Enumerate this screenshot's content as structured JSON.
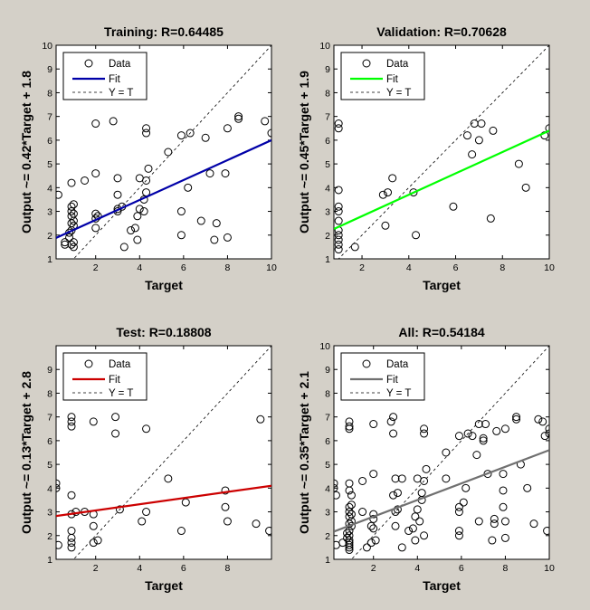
{
  "figure": {
    "background": "#d4d0c8",
    "plot_background": "#ffffff"
  },
  "chart_data": [
    {
      "type": "scatter",
      "title": "Training: R=0.64485",
      "xlabel": "Target",
      "ylabel": "Output ~= 0.42*Target + 1.8",
      "xlim": [
        0.2,
        10
      ],
      "ylim": [
        1,
        10
      ],
      "xticks": [
        2,
        4,
        6,
        8,
        10
      ],
      "yticks": [
        1,
        2,
        3,
        4,
        5,
        6,
        7,
        8,
        9,
        10
      ],
      "fit": {
        "slope": 0.42,
        "intercept": 1.8,
        "color": "#0000a8"
      },
      "legend": [
        "Data",
        "Fit",
        "Y = T"
      ],
      "legend_position": "top-left",
      "points": [
        [
          0.3,
          3.7
        ],
        [
          0.6,
          1.7
        ],
        [
          0.6,
          1.6
        ],
        [
          0.8,
          1.9
        ],
        [
          0.8,
          2.1
        ],
        [
          0.9,
          1.6
        ],
        [
          0.9,
          2.2
        ],
        [
          0.9,
          2.5
        ],
        [
          0.9,
          2.8
        ],
        [
          0.9,
          3.0
        ],
        [
          0.9,
          3.2
        ],
        [
          0.9,
          4.2
        ],
        [
          1.0,
          1.5
        ],
        [
          1.0,
          1.7
        ],
        [
          1.0,
          2.4
        ],
        [
          1.0,
          2.6
        ],
        [
          1.0,
          2.9
        ],
        [
          1.0,
          3.3
        ],
        [
          1.5,
          4.3
        ],
        [
          2.0,
          2.3
        ],
        [
          2.0,
          2.7
        ],
        [
          2.0,
          2.9
        ],
        [
          2.0,
          4.6
        ],
        [
          2.0,
          6.7
        ],
        [
          2.1,
          2.8
        ],
        [
          2.8,
          6.8
        ],
        [
          3.0,
          3.0
        ],
        [
          3.0,
          3.1
        ],
        [
          3.0,
          3.7
        ],
        [
          3.0,
          4.4
        ],
        [
          3.2,
          3.2
        ],
        [
          3.3,
          1.5
        ],
        [
          3.6,
          2.2
        ],
        [
          3.8,
          2.3
        ],
        [
          3.9,
          1.8
        ],
        [
          3.9,
          2.8
        ],
        [
          4.0,
          3.1
        ],
        [
          4.0,
          4.4
        ],
        [
          4.2,
          3.0
        ],
        [
          4.2,
          3.5
        ],
        [
          4.3,
          3.8
        ],
        [
          4.3,
          4.3
        ],
        [
          4.3,
          6.3
        ],
        [
          4.3,
          6.5
        ],
        [
          4.4,
          4.8
        ],
        [
          5.3,
          5.5
        ],
        [
          5.9,
          2.0
        ],
        [
          5.9,
          3.0
        ],
        [
          5.9,
          6.2
        ],
        [
          6.2,
          4.0
        ],
        [
          6.3,
          6.3
        ],
        [
          6.8,
          2.6
        ],
        [
          7.0,
          6.1
        ],
        [
          7.2,
          4.6
        ],
        [
          7.4,
          1.8
        ],
        [
          7.5,
          2.5
        ],
        [
          7.9,
          4.6
        ],
        [
          8.0,
          1.9
        ],
        [
          8.0,
          6.5
        ],
        [
          8.5,
          6.9
        ],
        [
          8.5,
          7.0
        ],
        [
          9.7,
          6.8
        ],
        [
          10.0,
          6.3
        ]
      ]
    },
    {
      "type": "scatter",
      "title": "Validation: R=0.70628",
      "xlabel": "Target",
      "ylabel": "Output ~= 0.45*Target + 1.9",
      "xlim": [
        0.8,
        10
      ],
      "ylim": [
        1,
        10
      ],
      "xticks": [
        2,
        4,
        6,
        8,
        10
      ],
      "yticks": [
        1,
        2,
        3,
        4,
        5,
        6,
        7,
        8,
        9,
        10
      ],
      "fit": {
        "slope": 0.45,
        "intercept": 1.9,
        "color": "#00ff00"
      },
      "legend": [
        "Data",
        "Fit",
        "Y = T"
      ],
      "legend_position": "top-left",
      "points": [
        [
          1.0,
          1.4
        ],
        [
          1.0,
          1.6
        ],
        [
          1.0,
          1.8
        ],
        [
          1.0,
          2.0
        ],
        [
          1.0,
          2.2
        ],
        [
          1.0,
          2.6
        ],
        [
          1.0,
          3.0
        ],
        [
          1.0,
          3.2
        ],
        [
          1.0,
          3.9
        ],
        [
          1.0,
          6.5
        ],
        [
          1.0,
          6.7
        ],
        [
          1.7,
          1.5
        ],
        [
          2.9,
          3.7
        ],
        [
          3.0,
          2.4
        ],
        [
          3.1,
          3.8
        ],
        [
          3.3,
          4.4
        ],
        [
          4.2,
          3.8
        ],
        [
          4.3,
          2.0
        ],
        [
          5.9,
          3.2
        ],
        [
          6.5,
          6.2
        ],
        [
          6.7,
          5.4
        ],
        [
          6.8,
          6.7
        ],
        [
          7.0,
          6.0
        ],
        [
          7.1,
          6.7
        ],
        [
          7.5,
          2.7
        ],
        [
          7.6,
          6.4
        ],
        [
          8.7,
          5.0
        ],
        [
          9.0,
          4.0
        ],
        [
          9.8,
          6.2
        ],
        [
          10.0,
          6.5
        ]
      ]
    },
    {
      "type": "scatter",
      "title": "Test: R=0.18808",
      "xlabel": "Target",
      "ylabel": "Output ~= 0.13*Target + 2.8",
      "xlim": [
        0.2,
        10
      ],
      "ylim": [
        1,
        10
      ],
      "xticks": [
        2,
        4,
        6,
        8
      ],
      "yticks": [
        1,
        2,
        3,
        4,
        5,
        6,
        7,
        8,
        9
      ],
      "fit": {
        "slope": 0.13,
        "intercept": 2.8,
        "color": "#cc0000"
      },
      "legend": [
        "Data",
        "Fit",
        "Y = T"
      ],
      "legend_position": "top-left",
      "points": [
        [
          0.2,
          4.0
        ],
        [
          0.2,
          4.2
        ],
        [
          0.3,
          1.6
        ],
        [
          0.9,
          1.5
        ],
        [
          0.9,
          1.7
        ],
        [
          0.9,
          1.9
        ],
        [
          0.9,
          2.2
        ],
        [
          0.9,
          2.9
        ],
        [
          0.9,
          3.7
        ],
        [
          0.9,
          6.6
        ],
        [
          0.9,
          6.8
        ],
        [
          0.9,
          7.0
        ],
        [
          1.1,
          3.0
        ],
        [
          1.5,
          3.0
        ],
        [
          1.9,
          1.7
        ],
        [
          1.9,
          2.4
        ],
        [
          1.9,
          2.9
        ],
        [
          1.9,
          6.8
        ],
        [
          2.1,
          1.8
        ],
        [
          2.9,
          6.3
        ],
        [
          2.9,
          7.0
        ],
        [
          3.1,
          3.1
        ],
        [
          4.1,
          2.6
        ],
        [
          4.3,
          3.0
        ],
        [
          4.3,
          6.5
        ],
        [
          5.3,
          4.4
        ],
        [
          5.9,
          2.2
        ],
        [
          6.1,
          3.4
        ],
        [
          7.9,
          3.2
        ],
        [
          7.9,
          3.9
        ],
        [
          8.0,
          2.6
        ],
        [
          9.3,
          2.5
        ],
        [
          9.5,
          6.9
        ],
        [
          9.9,
          2.2
        ]
      ]
    },
    {
      "type": "scatter",
      "title": "All: R=0.54184",
      "xlabel": "Target",
      "ylabel": "Output ~= 0.35*Target + 2.1",
      "xlim": [
        0.2,
        10
      ],
      "ylim": [
        1,
        10
      ],
      "xticks": [
        2,
        4,
        6,
        8,
        10
      ],
      "yticks": [
        1,
        2,
        3,
        4,
        5,
        6,
        7,
        8,
        9,
        10
      ],
      "fit": {
        "slope": 0.35,
        "intercept": 2.1,
        "color": "#707070"
      },
      "legend": [
        "Data",
        "Fit",
        "Y = T"
      ],
      "legend_position": "top-left",
      "points": [
        [
          0.2,
          4.0
        ],
        [
          0.2,
          4.2
        ],
        [
          0.3,
          3.7
        ],
        [
          0.3,
          1.6
        ],
        [
          0.6,
          1.7
        ],
        [
          0.8,
          1.9
        ],
        [
          0.8,
          2.1
        ],
        [
          0.9,
          1.4
        ],
        [
          0.9,
          1.5
        ],
        [
          0.9,
          1.6
        ],
        [
          0.9,
          1.7
        ],
        [
          0.9,
          1.8
        ],
        [
          0.9,
          2.0
        ],
        [
          0.9,
          2.2
        ],
        [
          0.9,
          2.5
        ],
        [
          0.9,
          2.8
        ],
        [
          0.9,
          3.0
        ],
        [
          0.9,
          3.2
        ],
        [
          0.9,
          3.9
        ],
        [
          0.9,
          4.2
        ],
        [
          0.9,
          6.5
        ],
        [
          0.9,
          6.6
        ],
        [
          0.9,
          6.8
        ],
        [
          1.0,
          2.4
        ],
        [
          1.0,
          2.6
        ],
        [
          1.0,
          2.9
        ],
        [
          1.0,
          3.3
        ],
        [
          1.0,
          3.7
        ],
        [
          1.5,
          4.3
        ],
        [
          1.5,
          3.0
        ],
        [
          1.7,
          1.5
        ],
        [
          1.9,
          1.7
        ],
        [
          1.9,
          2.4
        ],
        [
          2.0,
          2.3
        ],
        [
          2.0,
          2.7
        ],
        [
          2.0,
          2.9
        ],
        [
          2.0,
          4.6
        ],
        [
          2.0,
          6.7
        ],
        [
          2.1,
          1.8
        ],
        [
          2.8,
          6.8
        ],
        [
          2.9,
          6.3
        ],
        [
          2.9,
          7.0
        ],
        [
          2.9,
          3.7
        ],
        [
          3.0,
          2.4
        ],
        [
          3.0,
          3.0
        ],
        [
          3.0,
          4.4
        ],
        [
          3.1,
          3.1
        ],
        [
          3.1,
          3.8
        ],
        [
          3.3,
          1.5
        ],
        [
          3.3,
          4.4
        ],
        [
          3.6,
          2.2
        ],
        [
          3.8,
          2.3
        ],
        [
          3.9,
          1.8
        ],
        [
          3.9,
          2.8
        ],
        [
          4.0,
          3.1
        ],
        [
          4.0,
          4.4
        ],
        [
          4.1,
          2.6
        ],
        [
          4.2,
          3.5
        ],
        [
          4.2,
          3.8
        ],
        [
          4.3,
          2.0
        ],
        [
          4.3,
          4.3
        ],
        [
          4.3,
          6.3
        ],
        [
          4.3,
          6.5
        ],
        [
          4.4,
          4.8
        ],
        [
          5.3,
          4.4
        ],
        [
          5.3,
          5.5
        ],
        [
          5.9,
          2.0
        ],
        [
          5.9,
          2.2
        ],
        [
          5.9,
          3.0
        ],
        [
          5.9,
          3.2
        ],
        [
          5.9,
          6.2
        ],
        [
          6.1,
          3.4
        ],
        [
          6.2,
          4.0
        ],
        [
          6.3,
          6.3
        ],
        [
          6.5,
          6.2
        ],
        [
          6.7,
          5.4
        ],
        [
          6.8,
          2.6
        ],
        [
          6.8,
          6.7
        ],
        [
          7.0,
          6.0
        ],
        [
          7.0,
          6.1
        ],
        [
          7.1,
          6.7
        ],
        [
          7.2,
          4.6
        ],
        [
          7.4,
          1.8
        ],
        [
          7.5,
          2.5
        ],
        [
          7.5,
          2.7
        ],
        [
          7.6,
          6.4
        ],
        [
          7.9,
          3.2
        ],
        [
          7.9,
          3.9
        ],
        [
          7.9,
          4.6
        ],
        [
          8.0,
          1.9
        ],
        [
          8.0,
          2.6
        ],
        [
          8.0,
          6.5
        ],
        [
          8.5,
          6.9
        ],
        [
          8.5,
          7.0
        ],
        [
          8.7,
          5.0
        ],
        [
          9.0,
          4.0
        ],
        [
          9.3,
          2.5
        ],
        [
          9.5,
          6.9
        ],
        [
          9.7,
          6.8
        ],
        [
          9.8,
          6.2
        ],
        [
          9.9,
          2.2
        ],
        [
          10.0,
          6.3
        ],
        [
          10.0,
          6.5
        ]
      ]
    }
  ]
}
